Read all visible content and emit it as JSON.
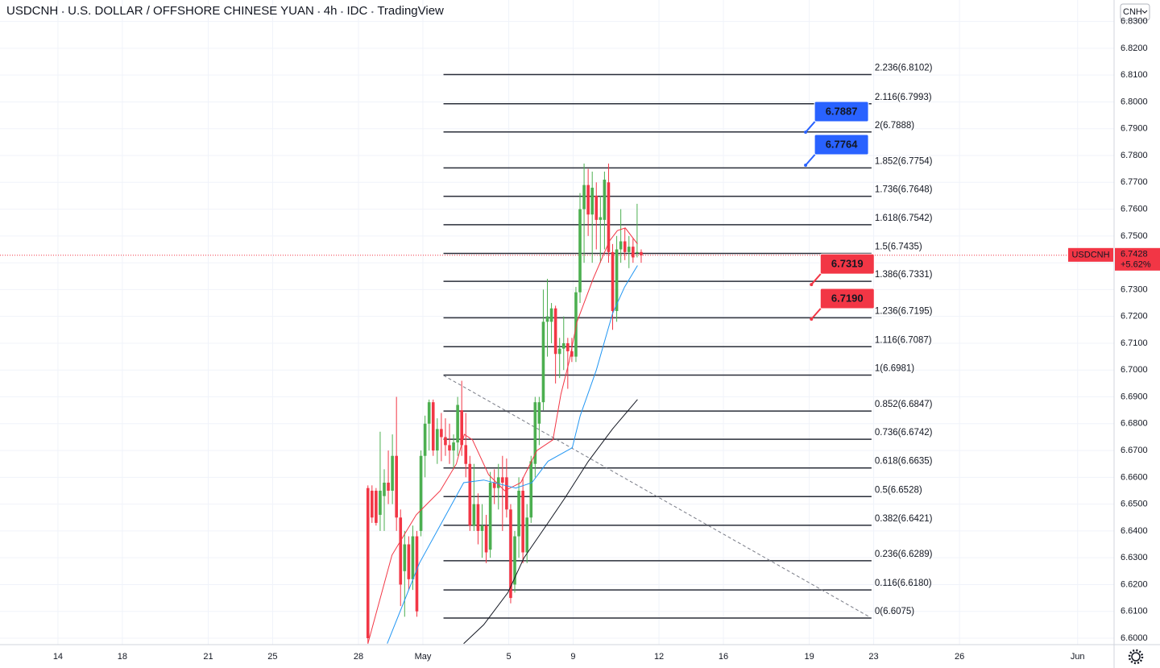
{
  "header": {
    "symbol": "USDCNH",
    "name": "U.S. DOLLAR / OFFSHORE CHINESE YUAN",
    "interval": "4h",
    "source": "IDC",
    "brand": "TradingView"
  },
  "currency_button": "CNH",
  "chart_data": {
    "type": "candlestick",
    "xlim": [
      -2.7,
      49.2
    ],
    "ylim": [
      6.5976,
      6.838
    ],
    "grid": true,
    "xticks": [
      {
        "value": 0,
        "label": "14"
      },
      {
        "value": 3,
        "label": "18"
      },
      {
        "value": 7,
        "label": "21"
      },
      {
        "value": 10,
        "label": "25"
      },
      {
        "value": 14,
        "label": "28"
      },
      {
        "value": 17,
        "label": "May"
      },
      {
        "value": 21,
        "label": "5"
      },
      {
        "value": 24,
        "label": "9"
      },
      {
        "value": 28,
        "label": "12"
      },
      {
        "value": 31,
        "label": "16"
      },
      {
        "value": 35,
        "label": "19"
      },
      {
        "value": 38,
        "label": "23"
      },
      {
        "value": 42,
        "label": "26"
      },
      {
        "value": 47.5,
        "label": "Jun"
      }
    ],
    "yticks": [
      {
        "value": 6.6,
        "label": "6.6000"
      },
      {
        "value": 6.61,
        "label": "6.6100"
      },
      {
        "value": 6.62,
        "label": "6.6200"
      },
      {
        "value": 6.63,
        "label": "6.6300"
      },
      {
        "value": 6.64,
        "label": "6.6400"
      },
      {
        "value": 6.65,
        "label": "6.6500"
      },
      {
        "value": 6.66,
        "label": "6.6600"
      },
      {
        "value": 6.67,
        "label": "6.6700"
      },
      {
        "value": 6.68,
        "label": "6.6800"
      },
      {
        "value": 6.69,
        "label": "6.6900"
      },
      {
        "value": 6.7,
        "label": "6.7000"
      },
      {
        "value": 6.71,
        "label": "6.7100"
      },
      {
        "value": 6.72,
        "label": "6.7200"
      },
      {
        "value": 6.73,
        "label": "6.7300"
      },
      {
        "value": 6.74,
        "label": "6.7400"
      },
      {
        "value": 6.75,
        "label": "6.7500"
      },
      {
        "value": 6.76,
        "label": "6.7600"
      },
      {
        "value": 6.77,
        "label": "6.7700"
      },
      {
        "value": 6.78,
        "label": "6.7800"
      },
      {
        "value": 6.79,
        "label": "6.7900"
      },
      {
        "value": 6.8,
        "label": "6.8000"
      },
      {
        "value": 6.81,
        "label": "6.8100"
      },
      {
        "value": 6.82,
        "label": "6.8200"
      },
      {
        "value": 6.83,
        "label": "6.8300"
      }
    ],
    "up_color": "#4caf50",
    "down_color": "#f23645",
    "candles": {
      "x": [
        14.44,
        14.63,
        14.82,
        15.01,
        15.2,
        15.39,
        15.58,
        15.77,
        15.96,
        16.15,
        16.34,
        16.53,
        16.72,
        16.91,
        17.1,
        17.29,
        17.48,
        17.67,
        17.86,
        18.05,
        18.24,
        18.43,
        18.62,
        18.81,
        19,
        19.19,
        19.38,
        19.57,
        19.76,
        19.95,
        20.14,
        20.33,
        20.52,
        20.71,
        20.9,
        21.09,
        21.28,
        21.47,
        21.66,
        21.85,
        22.04,
        22.23,
        22.42,
        22.61,
        22.8,
        22.99,
        23.18,
        23.37,
        23.56,
        23.75,
        23.94,
        24.13,
        24.32,
        24.51,
        24.7,
        24.89,
        25.08,
        25.27,
        25.46,
        25.65,
        25.84,
        26.03,
        26.22,
        26.41,
        26.6,
        26.79,
        26.98,
        27.17
      ],
      "open": [
        6.656,
        6.655,
        6.655,
        6.646,
        6.653,
        6.658,
        6.655,
        6.668,
        6.645,
        6.625,
        6.635,
        6.622,
        6.638,
        6.64,
        6.668,
        6.68,
        6.688,
        6.67,
        6.678,
        6.675,
        6.672,
        6.67,
        6.673,
        6.685,
        6.672,
        6.665,
        6.642,
        6.65,
        6.64,
        6.642,
        6.633,
        6.658,
        6.656,
        6.66,
        6.66,
        6.648,
        6.62,
        6.638,
        6.655,
        6.632,
        6.645,
        6.665,
        6.68,
        6.688,
        6.718,
        6.718,
        6.723,
        6.706,
        6.708,
        6.71,
        6.707,
        6.705,
        6.729,
        6.76,
        6.769,
        6.758,
        6.765,
        6.756,
        6.756,
        6.77,
        6.744,
        6.722,
        6.745,
        6.748,
        6.744,
        6.746,
        6.744,
        6.744
      ],
      "high": [
        6.657,
        6.657,
        6.656,
        6.677,
        6.663,
        6.67,
        6.676,
        6.69,
        6.648,
        6.64,
        6.638,
        6.642,
        6.64,
        6.67,
        6.683,
        6.689,
        6.689,
        6.682,
        6.684,
        6.682,
        6.68,
        6.676,
        6.69,
        6.696,
        6.684,
        6.668,
        6.665,
        6.654,
        6.65,
        6.646,
        6.662,
        6.663,
        6.665,
        6.668,
        6.667,
        6.65,
        6.64,
        6.66,
        6.66,
        6.65,
        6.668,
        6.69,
        6.69,
        6.73,
        6.734,
        6.725,
        6.724,
        6.712,
        6.72,
        6.712,
        6.712,
        6.731,
        6.766,
        6.777,
        6.775,
        6.774,
        6.77,
        6.765,
        6.774,
        6.777,
        6.747,
        6.75,
        6.76,
        6.753,
        6.75,
        6.749,
        6.762,
        6.745
      ],
      "low": [
        6.598,
        6.643,
        6.642,
        6.64,
        6.64,
        6.65,
        6.65,
        6.64,
        6.612,
        6.608,
        6.618,
        6.618,
        6.608,
        6.638,
        6.66,
        6.67,
        6.668,
        6.665,
        6.666,
        6.668,
        6.665,
        6.663,
        6.668,
        6.668,
        6.66,
        6.64,
        6.64,
        6.635,
        6.63,
        6.628,
        6.63,
        6.65,
        6.648,
        6.64,
        6.645,
        6.613,
        6.617,
        6.63,
        6.628,
        6.628,
        6.643,
        6.66,
        6.672,
        6.685,
        6.705,
        6.71,
        6.695,
        6.697,
        6.7,
        6.693,
        6.703,
        6.703,
        6.725,
        6.74,
        6.75,
        6.74,
        6.745,
        6.74,
        6.745,
        6.74,
        6.715,
        6.718,
        6.74,
        6.741,
        6.738,
        6.74,
        6.742,
        6.74
      ],
      "close": [
        6.6,
        6.645,
        6.643,
        6.655,
        6.658,
        6.655,
        6.668,
        6.645,
        6.62,
        6.635,
        6.622,
        6.638,
        6.61,
        6.668,
        6.68,
        6.688,
        6.67,
        6.678,
        6.675,
        6.672,
        6.67,
        6.673,
        6.687,
        6.672,
        6.665,
        6.642,
        6.65,
        6.64,
        6.642,
        6.632,
        6.658,
        6.656,
        6.66,
        6.658,
        6.648,
        6.615,
        6.638,
        6.655,
        6.632,
        6.645,
        6.666,
        6.688,
        6.688,
        6.718,
        6.72,
        6.723,
        6.706,
        6.708,
        6.71,
        6.707,
        6.705,
        6.729,
        6.76,
        6.769,
        6.758,
        6.768,
        6.756,
        6.757,
        6.771,
        6.744,
        6.722,
        6.745,
        6.748,
        6.744,
        6.746,
        6.742,
        6.744,
        6.7428
      ]
    },
    "lines": [
      {
        "color": "#f23645",
        "x": [
          14.44,
          15.56,
          16.69,
          17.81,
          18.56,
          18.93,
          19.31,
          20.06,
          20.81,
          21.56,
          22.31,
          23.06,
          23.43,
          23.81,
          24.18,
          24.93,
          25.68,
          26.06,
          26.43,
          27.0
        ],
        "values": [
          6.598,
          6.631,
          6.646,
          6.655,
          6.665,
          6.676,
          6.674,
          6.661,
          6.655,
          6.658,
          6.67,
          6.674,
          6.691,
          6.703,
          6.718,
          6.734,
          6.748,
          6.752,
          6.753,
          6.747
        ]
      },
      {
        "color": "#2196f3",
        "x": [
          15.34,
          16.84,
          18.9,
          19.83,
          21.33,
          22.08,
          22.83,
          23.96,
          24.33,
          25.08,
          25.83,
          26.4,
          27.0
        ],
        "values": [
          6.598,
          6.628,
          6.658,
          6.659,
          6.656,
          6.658,
          6.666,
          6.671,
          6.683,
          6.7,
          6.721,
          6.731,
          6.739
        ]
      },
      {
        "color": "#131722",
        "x": [
          18.9,
          19.83,
          20.96,
          21.71,
          22.83,
          23.59,
          24.71,
          25.83,
          27.0
        ],
        "values": [
          6.598,
          6.605,
          6.617,
          6.63,
          6.643,
          6.652,
          6.666,
          6.678,
          6.689
        ]
      }
    ],
    "trend_line": {
      "x": [
        17.96,
        37.9
      ],
      "values": [
        6.698,
        6.6075
      ]
    },
    "fib": {
      "x": [
        17.96,
        37.9
      ],
      "levels": [
        {
          "value": 6.8102,
          "label": "2.236(6.8102)"
        },
        {
          "value": 6.7993,
          "label": "2.116(6.7993)"
        },
        {
          "value": 6.7888,
          "label": "2(6.7888)"
        },
        {
          "value": 6.7754,
          "label": "1.852(6.7754)"
        },
        {
          "value": 6.7648,
          "label": "1.736(6.7648)"
        },
        {
          "value": 6.7542,
          "label": "1.618(6.7542)"
        },
        {
          "value": 6.7435,
          "label": "1.5(6.7435)"
        },
        {
          "value": 6.7331,
          "label": "1.386(6.7331)"
        },
        {
          "value": 6.7195,
          "label": "1.236(6.7195)"
        },
        {
          "value": 6.7087,
          "label": "1.116(6.7087)"
        },
        {
          "value": 6.6981,
          "label": "1(6.6981)"
        },
        {
          "value": 6.6847,
          "label": "0.852(6.6847)"
        },
        {
          "value": 6.6742,
          "label": "0.736(6.6742)"
        },
        {
          "value": 6.6635,
          "label": "0.618(6.6635)"
        },
        {
          "value": 6.6528,
          "label": "0.5(6.6528)"
        },
        {
          "value": 6.6421,
          "label": "0.382(6.6421)"
        },
        {
          "value": 6.6289,
          "label": "0.236(6.6289)"
        },
        {
          "value": 6.618,
          "label": "0.116(6.6180)"
        },
        {
          "value": 6.6075,
          "label": "0(6.6075)"
        }
      ]
    },
    "price_tags": [
      {
        "x": 34.83,
        "value": 6.7887,
        "label": "6.7887",
        "color": "#2962ff"
      },
      {
        "x": 34.83,
        "value": 6.7764,
        "label": "6.7764",
        "color": "#2962ff"
      },
      {
        "x": 35.1,
        "value": 6.7319,
        "label": "6.7319",
        "color": "#f23645"
      },
      {
        "x": 35.1,
        "value": 6.719,
        "label": "6.7190",
        "color": "#f23645"
      }
    ],
    "last_price": {
      "symbol": "USDCNH",
      "value": 6.7428,
      "label": "6.7428",
      "change": "+5.62%",
      "color": "#f23645"
    }
  }
}
